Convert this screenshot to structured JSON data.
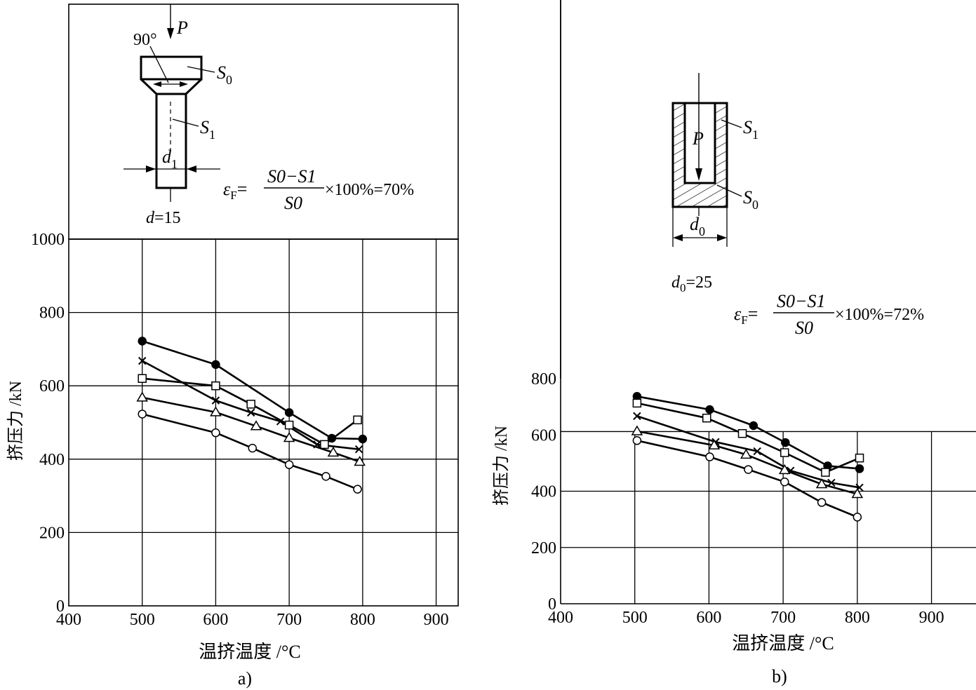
{
  "chart_data": [
    {
      "type": "line",
      "panel_label": "a)",
      "xlabel": "温挤温度 /°C",
      "ylabel": "挤压力 /kN",
      "xlim": [
        400,
        930
      ],
      "ylim": [
        0,
        1000
      ],
      "xticks": [
        400,
        500,
        600,
        700,
        800,
        900
      ],
      "yticks": [
        0,
        200,
        400,
        600,
        800,
        1000
      ],
      "grid": true,
      "series": [
        {
          "marker": "filled-circle",
          "x": [
            500,
            600,
            700,
            758,
            800
          ],
          "y": [
            722,
            658,
            527,
            457,
            455
          ]
        },
        {
          "marker": "cross",
          "x": [
            500,
            600,
            648,
            688,
            738,
            795
          ],
          "y": [
            668,
            560,
            527,
            503,
            440,
            427
          ]
        },
        {
          "marker": "square",
          "x": [
            500,
            600,
            648,
            700,
            748,
            793
          ],
          "y": [
            620,
            600,
            550,
            493,
            440,
            507
          ]
        },
        {
          "marker": "triangle",
          "x": [
            500,
            600,
            655,
            700,
            760,
            796
          ],
          "y": [
            568,
            528,
            490,
            458,
            418,
            393
          ]
        },
        {
          "marker": "circle",
          "x": [
            500,
            600,
            650,
            700,
            750,
            793
          ],
          "y": [
            523,
            472,
            430,
            385,
            353,
            318
          ]
        }
      ],
      "inset": {
        "angle_label": "90°",
        "force_label": "P",
        "s0_label": "S",
        "s0_sub": "0",
        "s1_label": "S",
        "s1_sub": "1",
        "d1_label": "d",
        "d1_sub": "1",
        "d_caption_var": "d",
        "d_caption_value": "=15",
        "strain_symbol": "ε",
        "strain_sub": "F",
        "eq_numerator": "S0−S1",
        "eq_denominator": "S0",
        "eq_result": "×100%=70%"
      }
    },
    {
      "type": "line",
      "panel_label": "b)",
      "xlabel": "温挤温度 /°C",
      "ylabel": "挤压力 /kN",
      "xlim": [
        400,
        960
      ],
      "ylim": [
        0,
        800
      ],
      "xticks": [
        400,
        500,
        600,
        700,
        800,
        900
      ],
      "yticks": [
        0,
        200,
        400,
        600,
        800
      ],
      "grid": true,
      "series": [
        {
          "marker": "filled-circle",
          "x": [
            503,
            601,
            660,
            703,
            760,
            803
          ],
          "y": [
            737,
            690,
            633,
            573,
            490,
            480
          ]
        },
        {
          "marker": "square",
          "x": [
            503,
            597,
            645,
            702,
            757,
            803
          ],
          "y": [
            713,
            660,
            605,
            537,
            467,
            518
          ]
        },
        {
          "marker": "cross",
          "x": [
            503,
            609,
            665,
            710,
            765,
            803
          ],
          "y": [
            667,
            575,
            542,
            473,
            430,
            413
          ]
        },
        {
          "marker": "triangle",
          "x": [
            503,
            607,
            650,
            702,
            752,
            800
          ],
          "y": [
            613,
            563,
            530,
            475,
            425,
            390
          ]
        },
        {
          "marker": "circle",
          "x": [
            503,
            601,
            653,
            702,
            752,
            800
          ],
          "y": [
            580,
            522,
            477,
            433,
            360,
            308
          ]
        }
      ],
      "inset": {
        "force_label": "P",
        "s1_label": "S",
        "s1_sub": "1",
        "s0_label": "S",
        "s0_sub": "0",
        "d0_label": "d",
        "d0_sub": "0",
        "d_caption_var": "d",
        "d_caption_sub": "0",
        "d_caption_value": "=25",
        "strain_symbol": "ε",
        "strain_sub": "F",
        "eq_numerator": "S0−S1",
        "eq_denominator": "S0",
        "eq_result": "×100%=72%"
      }
    }
  ]
}
